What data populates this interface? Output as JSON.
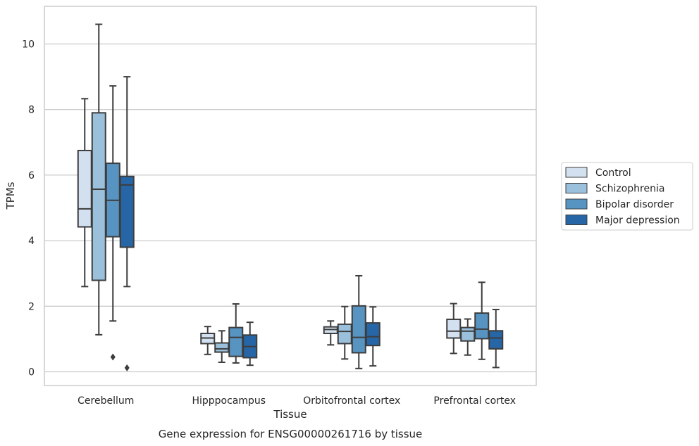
{
  "caption": "Gene expression for ENSG00000261716 by tissue",
  "chart_data": {
    "type": "box",
    "title": "",
    "xlabel": "Tissue",
    "ylabel": "TPMs",
    "categories": [
      "Cerebellum",
      "Hipppocampus",
      "Orbitofrontal cortex",
      "Prefrontal cortex"
    ],
    "ylim": [
      -0.4,
      11.2
    ],
    "yticks": [
      0,
      2,
      4,
      6,
      8,
      10
    ],
    "grid": "horizontal",
    "legend_position": "right",
    "series": [
      {
        "name": "Control",
        "color": "#d2e0f0",
        "boxes": [
          {
            "min": 2.6,
            "q1": 4.42,
            "median": 4.97,
            "q3": 6.75,
            "max": 8.33,
            "outliers": []
          },
          {
            "min": 0.53,
            "q1": 0.86,
            "median": 1.03,
            "q3": 1.17,
            "max": 1.38,
            "outliers": []
          },
          {
            "min": 0.82,
            "q1": 1.17,
            "median": 1.29,
            "q3": 1.37,
            "max": 1.55,
            "outliers": []
          },
          {
            "min": 0.56,
            "q1": 1.03,
            "median": 1.24,
            "q3": 1.6,
            "max": 2.08,
            "outliers": []
          }
        ]
      },
      {
        "name": "Schizophrenia",
        "color": "#9ac0dc",
        "boxes": [
          {
            "min": 1.13,
            "q1": 2.79,
            "median": 5.57,
            "q3": 7.9,
            "max": 10.6,
            "outliers": []
          },
          {
            "min": 0.29,
            "q1": 0.6,
            "median": 0.7,
            "q3": 0.88,
            "max": 1.25,
            "outliers": []
          },
          {
            "min": 0.39,
            "q1": 0.86,
            "median": 1.23,
            "q3": 1.45,
            "max": 1.99,
            "outliers": []
          },
          {
            "min": 0.51,
            "q1": 0.94,
            "median": 1.24,
            "q3": 1.35,
            "max": 1.61,
            "outliers": []
          }
        ]
      },
      {
        "name": "Bipolar disorder",
        "color": "#5894c2",
        "boxes": [
          {
            "min": 1.55,
            "q1": 4.12,
            "median": 5.23,
            "q3": 6.36,
            "max": 8.72,
            "outliers": [
              0.45
            ]
          },
          {
            "min": 0.27,
            "q1": 0.47,
            "median": 1.05,
            "q3": 1.35,
            "max": 2.07,
            "outliers": []
          },
          {
            "min": 0.1,
            "q1": 0.58,
            "median": 1.05,
            "q3": 2.01,
            "max": 2.93,
            "outliers": []
          },
          {
            "min": 0.38,
            "q1": 1.01,
            "median": 1.3,
            "q3": 1.79,
            "max": 2.73,
            "outliers": []
          }
        ]
      },
      {
        "name": "Major depression",
        "color": "#2766a6",
        "boxes": [
          {
            "min": 2.6,
            "q1": 3.8,
            "median": 5.7,
            "q3": 5.96,
            "max": 9.0,
            "outliers": [
              0.12
            ]
          },
          {
            "min": 0.2,
            "q1": 0.43,
            "median": 0.77,
            "q3": 1.12,
            "max": 1.51,
            "outliers": []
          },
          {
            "min": 0.18,
            "q1": 0.8,
            "median": 1.07,
            "q3": 1.49,
            "max": 1.98,
            "outliers": []
          },
          {
            "min": 0.13,
            "q1": 0.7,
            "median": 1.03,
            "q3": 1.25,
            "max": 1.9,
            "outliers": []
          }
        ]
      }
    ]
  }
}
